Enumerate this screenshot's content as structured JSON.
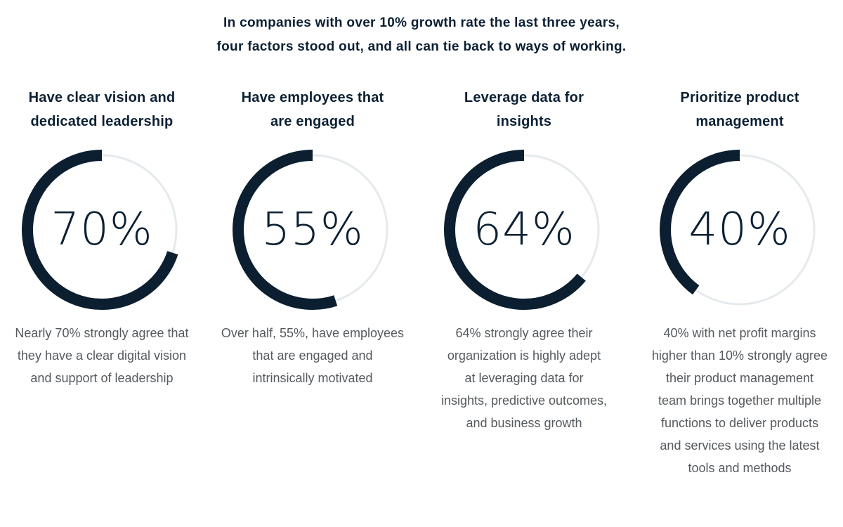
{
  "intro": {
    "line1": "In companies with over 10% growth rate the last three years,",
    "line2": "four factors stood out, and all can tie back to ways of working."
  },
  "colors": {
    "arc": "#0c1f30",
    "track": "#e5eaed",
    "text": "#0c2033",
    "body": "#555a5e"
  },
  "chart_data": {
    "type": "donut-gauges",
    "items": [
      {
        "heading1": "Have clear vision and",
        "heading2": "dedicated leadership",
        "value": 70,
        "label": "70%",
        "desc": [
          "Nearly 70% strongly agree that",
          "they have a clear digital vision",
          "and support of leadership"
        ]
      },
      {
        "heading1": "Have employees that",
        "heading2": "are engaged",
        "value": 55,
        "label": "55%",
        "desc": [
          "Over half, 55%, have employees",
          "that are engaged and",
          "intrinsically motivated"
        ]
      },
      {
        "heading1": "Leverage data for",
        "heading2": "insights",
        "value": 64,
        "label": "64%",
        "desc": [
          "64% strongly agree their",
          "organization is highly adept",
          "at leveraging data for",
          "insights, predictive outcomes,",
          "and business growth"
        ]
      },
      {
        "heading1": "Prioritize product",
        "heading2": "management",
        "value": 40,
        "label": "40%",
        "desc": [
          "40% with net profit margins",
          "higher than 10% strongly agree",
          "their product management",
          "team brings together multiple",
          "functions to deliver products",
          "and services using the latest",
          "tools and methods"
        ]
      }
    ]
  }
}
